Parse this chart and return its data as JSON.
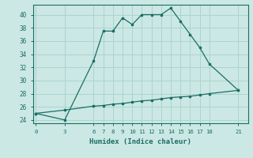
{
  "xlabel": "Humidex (Indice chaleur)",
  "background_color": "#cce8e4",
  "line_color": "#1a6e64",
  "grid_color": "#aad4cf",
  "xticks": [
    0,
    3,
    6,
    7,
    8,
    9,
    10,
    11,
    12,
    13,
    14,
    15,
    16,
    17,
    18,
    21
  ],
  "ylim": [
    23.5,
    41.5
  ],
  "xlim": [
    -0.3,
    22.0
  ],
  "yticks": [
    24,
    26,
    28,
    30,
    32,
    34,
    36,
    38,
    40
  ],
  "line1_x": [
    0,
    3,
    6,
    7,
    8,
    9,
    10,
    11,
    12,
    13,
    14,
    15,
    16,
    17,
    18,
    21
  ],
  "line1_y": [
    25.0,
    24.0,
    33.0,
    37.5,
    37.5,
    39.5,
    38.5,
    40.0,
    40.0,
    40.0,
    41.0,
    39.0,
    37.0,
    35.0,
    32.5,
    28.5
  ],
  "line2_x": [
    0,
    3,
    6,
    7,
    8,
    9,
    10,
    11,
    12,
    13,
    14,
    15,
    16,
    17,
    18,
    21
  ],
  "line2_y": [
    25.0,
    25.5,
    26.1,
    26.2,
    26.4,
    26.5,
    26.7,
    26.9,
    27.0,
    27.2,
    27.4,
    27.5,
    27.6,
    27.8,
    28.0,
    28.5
  ]
}
